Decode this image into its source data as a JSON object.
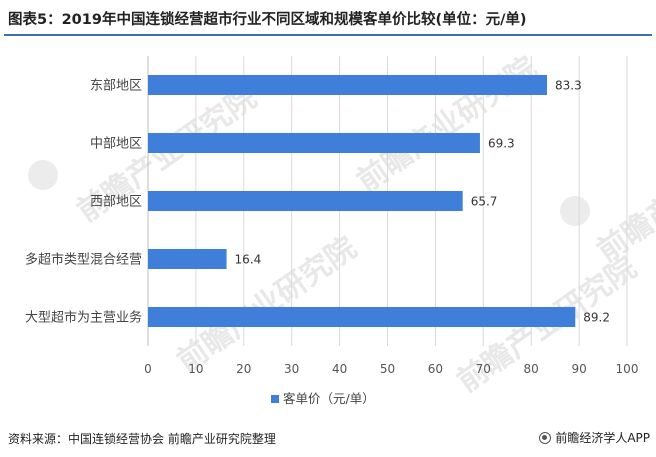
{
  "title": "图表5：2019年中国连锁经营超市行业不同区域和规模客单价比较(单位：元/单)",
  "source": "资料来源：中国连锁经营协会 前瞻产业研究院整理",
  "brand": "前瞻经济学人APP",
  "watermark": "前瞻产业研究院",
  "colors": {
    "bar": "#3f7fd9",
    "title_rule": "#3f6fb0",
    "grid": "#d9d9d9"
  },
  "chart_data": {
    "type": "bar",
    "orientation": "horizontal",
    "categories": [
      "东部地区",
      "中部地区",
      "西部地区",
      "多超市类型混合经营",
      "大型超市为主营业务"
    ],
    "series": [
      {
        "name": "客单价（元/单）",
        "values": [
          83.3,
          69.3,
          65.7,
          16.4,
          89.2
        ]
      }
    ],
    "data_labels": [
      "83.3",
      "69.3",
      "65.7",
      "16.4",
      "89.2"
    ],
    "xlim": [
      0,
      100
    ],
    "x_ticks": [
      0,
      10,
      20,
      30,
      40,
      50,
      60,
      70,
      80,
      90,
      100
    ],
    "grid": "vertical",
    "legend_position": "bottom"
  }
}
